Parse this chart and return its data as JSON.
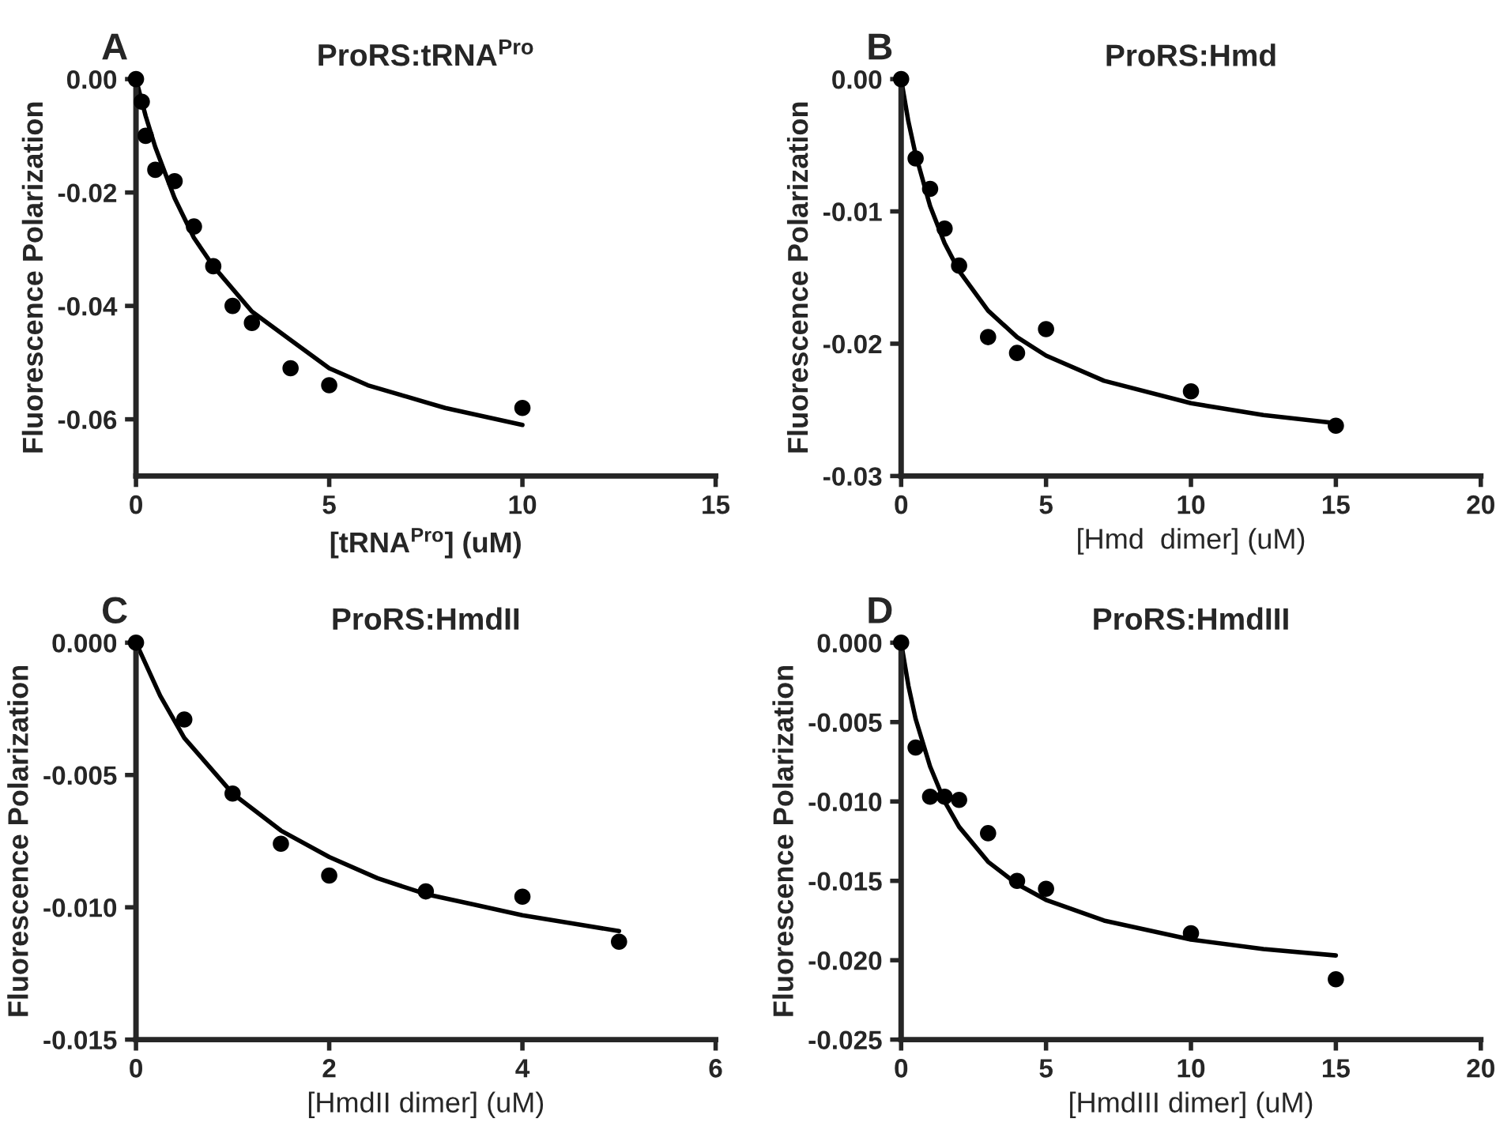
{
  "chart_data": [
    {
      "type": "scatter",
      "title": "ProRS:tRNA$^{Pro}$",
      "xlabel": "[tRNA$^{Pro}$] (uM)",
      "ylabel": "Fluorescence Polarization",
      "annotations": [
        "A"
      ],
      "grid": false,
      "xlim": [
        0,
        15
      ],
      "xticks": [
        0,
        5,
        10,
        15
      ],
      "ylim": [
        -0.07,
        0.0
      ],
      "yticks": [
        {
          "value": 0.0,
          "label": "0.00"
        },
        {
          "value": -0.02,
          "label": "-0.02"
        },
        {
          "value": -0.04,
          "label": "-0.04"
        },
        {
          "value": -0.06,
          "label": "-0.06"
        }
      ],
      "series": [
        {
          "marker": "circle",
          "color": "#000000",
          "x": [
            0,
            0.15,
            0.25,
            0.5,
            1,
            1.5,
            2,
            2.5,
            3,
            4,
            5,
            10
          ],
          "values": [
            0.0,
            -0.004,
            -0.01,
            -0.016,
            -0.018,
            -0.026,
            -0.033,
            -0.04,
            -0.043,
            -0.051,
            -0.054,
            -0.058
          ]
        },
        {
          "type": "line",
          "color": "#000000",
          "line_style": "solid",
          "x": [
            0,
            0.25,
            0.5,
            1,
            1.5,
            2,
            3,
            4,
            5,
            6,
            7,
            8,
            10
          ],
          "values": [
            0.0,
            -0.0065,
            -0.012,
            -0.021,
            -0.028,
            -0.033,
            -0.041,
            -0.046,
            -0.051,
            -0.054,
            -0.056,
            -0.058,
            -0.061
          ]
        }
      ]
    },
    {
      "type": "scatter",
      "title": "ProRS:Hmd",
      "xlabel": "[Hmd  dimer] (uM)",
      "ylabel": "Fluorescence Polarization",
      "annotations": [
        "B"
      ],
      "grid": false,
      "xlim": [
        0,
        20
      ],
      "xticks": [
        0,
        5,
        10,
        15,
        20
      ],
      "ylim": [
        -0.03,
        0.0
      ],
      "yticks": [
        {
          "value": 0.0,
          "label": "0.00"
        },
        {
          "value": -0.01,
          "label": "-0.01"
        },
        {
          "value": -0.02,
          "label": "-0.02"
        },
        {
          "value": -0.03,
          "label": "-0.03"
        }
      ],
      "series": [
        {
          "marker": "circle",
          "color": "#000000",
          "x": [
            0,
            0.5,
            1,
            1.5,
            2,
            3,
            4,
            5,
            10,
            15
          ],
          "values": [
            0.0,
            -0.006,
            -0.0083,
            -0.0113,
            -0.0141,
            -0.0195,
            -0.0207,
            -0.0189,
            -0.0236,
            -0.0262
          ]
        },
        {
          "type": "line",
          "color": "#000000",
          "line_style": "solid",
          "x": [
            0,
            0.25,
            0.5,
            1,
            1.5,
            2,
            3,
            4,
            5,
            7,
            10,
            12.5,
            15
          ],
          "values": [
            0.0,
            -0.0032,
            -0.0057,
            -0.0096,
            -0.0124,
            -0.0145,
            -0.0175,
            -0.0195,
            -0.0209,
            -0.0228,
            -0.0245,
            -0.0254,
            -0.026
          ]
        }
      ]
    },
    {
      "type": "scatter",
      "title": "ProRS:HmdII",
      "xlabel": "[HmdII dimer] (uM)",
      "ylabel": "Fluorescence Polarization",
      "annotations": [
        "C"
      ],
      "grid": false,
      "xlim": [
        0,
        6
      ],
      "xticks": [
        0,
        2,
        4,
        6
      ],
      "ylim": [
        -0.015,
        0.0
      ],
      "yticks": [
        {
          "value": 0.0,
          "label": "0.000"
        },
        {
          "value": -0.005,
          "label": "-0.005"
        },
        {
          "value": -0.01,
          "label": "-0.010"
        },
        {
          "value": -0.015,
          "label": "-0.015"
        }
      ],
      "series": [
        {
          "marker": "circle",
          "color": "#000000",
          "x": [
            0,
            0.5,
            1,
            1.5,
            2,
            3,
            4,
            5
          ],
          "values": [
            0.0,
            -0.0029,
            -0.0057,
            -0.0076,
            -0.0088,
            -0.0094,
            -0.0096,
            -0.0113
          ]
        },
        {
          "type": "line",
          "color": "#000000",
          "line_style": "solid",
          "x": [
            0,
            0.25,
            0.5,
            1,
            1.5,
            2,
            2.5,
            3,
            3.5,
            4,
            4.5,
            5
          ],
          "values": [
            0.0,
            -0.002,
            -0.0036,
            -0.0057,
            -0.0071,
            -0.0081,
            -0.0089,
            -0.0095,
            -0.0099,
            -0.0103,
            -0.0106,
            -0.0109
          ]
        }
      ]
    },
    {
      "type": "scatter",
      "title": "ProRS:HmdIII",
      "xlabel": "[HmdIII dimer] (uM)",
      "ylabel": "Fluorescence Polarization",
      "annotations": [
        "D"
      ],
      "grid": false,
      "xlim": [
        0,
        20
      ],
      "xticks": [
        0,
        5,
        10,
        15,
        20
      ],
      "ylim": [
        -0.025,
        0.0
      ],
      "yticks": [
        {
          "value": 0.0,
          "label": "0.000"
        },
        {
          "value": -0.005,
          "label": "-0.005"
        },
        {
          "value": -0.01,
          "label": "-0.010"
        },
        {
          "value": -0.015,
          "label": "-0.015"
        },
        {
          "value": -0.02,
          "label": "-0.020"
        },
        {
          "value": -0.025,
          "label": "-0.025"
        }
      ],
      "series": [
        {
          "marker": "circle",
          "color": "#000000",
          "x": [
            0,
            0.5,
            1,
            1.5,
            2,
            3,
            4,
            5,
            10,
            15
          ],
          "values": [
            0.0,
            -0.0066,
            -0.0097,
            -0.0097,
            -0.0099,
            -0.012,
            -0.015,
            -0.0155,
            -0.0183,
            -0.0212
          ]
        },
        {
          "type": "line",
          "color": "#000000",
          "line_style": "solid",
          "x": [
            0,
            0.25,
            0.5,
            1,
            1.5,
            2,
            3,
            4,
            5,
            7,
            10,
            12.5,
            15
          ],
          "values": [
            0.0,
            -0.0027,
            -0.0048,
            -0.0078,
            -0.01,
            -0.0116,
            -0.0138,
            -0.0152,
            -0.0162,
            -0.0175,
            -0.0187,
            -0.0193,
            -0.0197
          ]
        }
      ]
    }
  ]
}
